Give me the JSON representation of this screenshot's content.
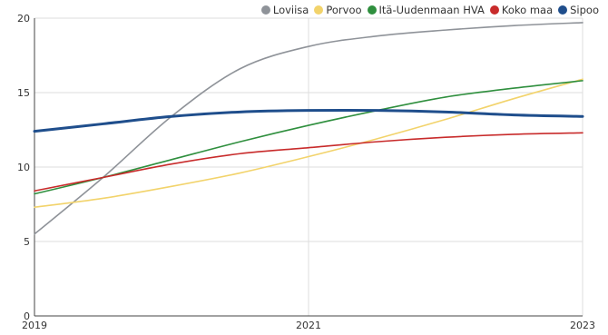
{
  "chart_data": {
    "type": "line",
    "x": [
      2019,
      2019.5,
      2020,
      2020.5,
      2021,
      2021.5,
      2022,
      2022.5,
      2023
    ],
    "x_ticks": [
      "2019",
      "2021",
      "2023"
    ],
    "y_ticks": [
      "0",
      "5",
      "10",
      "15",
      "20"
    ],
    "ylim": [
      0,
      20
    ],
    "xlim": [
      2019,
      2023
    ],
    "grid": true,
    "legend_position": "top-right",
    "series": [
      {
        "name": "Loviisa",
        "color": "#8f9399",
        "values": [
          5.5,
          9.3,
          13.4,
          16.6,
          18.1,
          18.8,
          19.2,
          19.5,
          19.7
        ]
      },
      {
        "name": "Porvoo",
        "color": "#f2d36b",
        "values": [
          7.3,
          7.9,
          8.7,
          9.6,
          10.7,
          11.9,
          13.2,
          14.6,
          15.9
        ]
      },
      {
        "name": "Itä-Uudenmaan HVA",
        "color": "#2f8f3e",
        "values": [
          8.2,
          9.3,
          10.5,
          11.7,
          12.8,
          13.8,
          14.7,
          15.3,
          15.8
        ]
      },
      {
        "name": "Koko maa",
        "color": "#c82b2b",
        "values": [
          8.4,
          9.3,
          10.2,
          10.9,
          11.3,
          11.7,
          12.0,
          12.2,
          12.3
        ]
      },
      {
        "name": "Sipoo",
        "color": "#1f4e8c",
        "values": [
          12.4,
          12.9,
          13.4,
          13.7,
          13.8,
          13.8,
          13.7,
          13.5,
          13.4
        ]
      }
    ]
  }
}
